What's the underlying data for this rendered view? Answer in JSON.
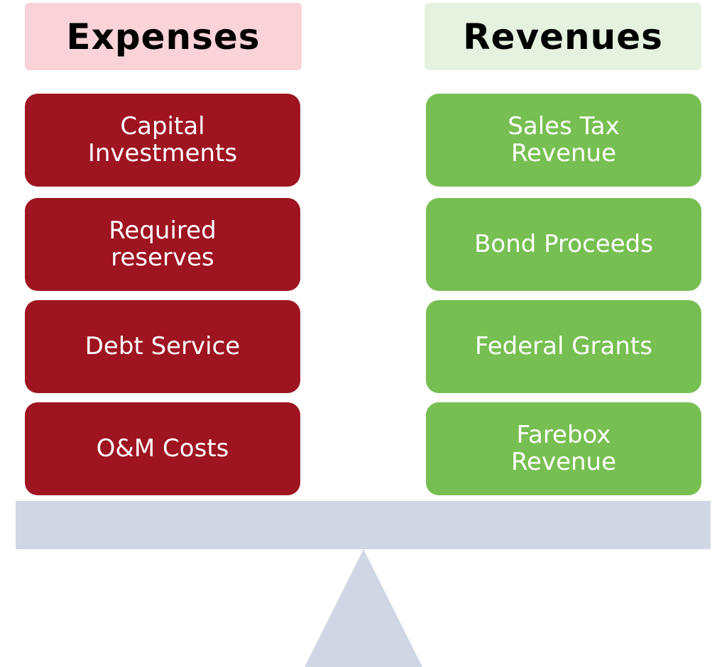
{
  "expenses": {
    "title": "Expenses",
    "items": [
      "Capital Investments",
      "Required reserves",
      "Debt Service",
      "O&M Costs"
    ]
  },
  "revenues": {
    "title": "Revenues",
    "items": [
      "Sales Tax Revenue",
      "Bond Proceeds",
      "Federal Grants",
      "Farebox Revenue"
    ]
  }
}
